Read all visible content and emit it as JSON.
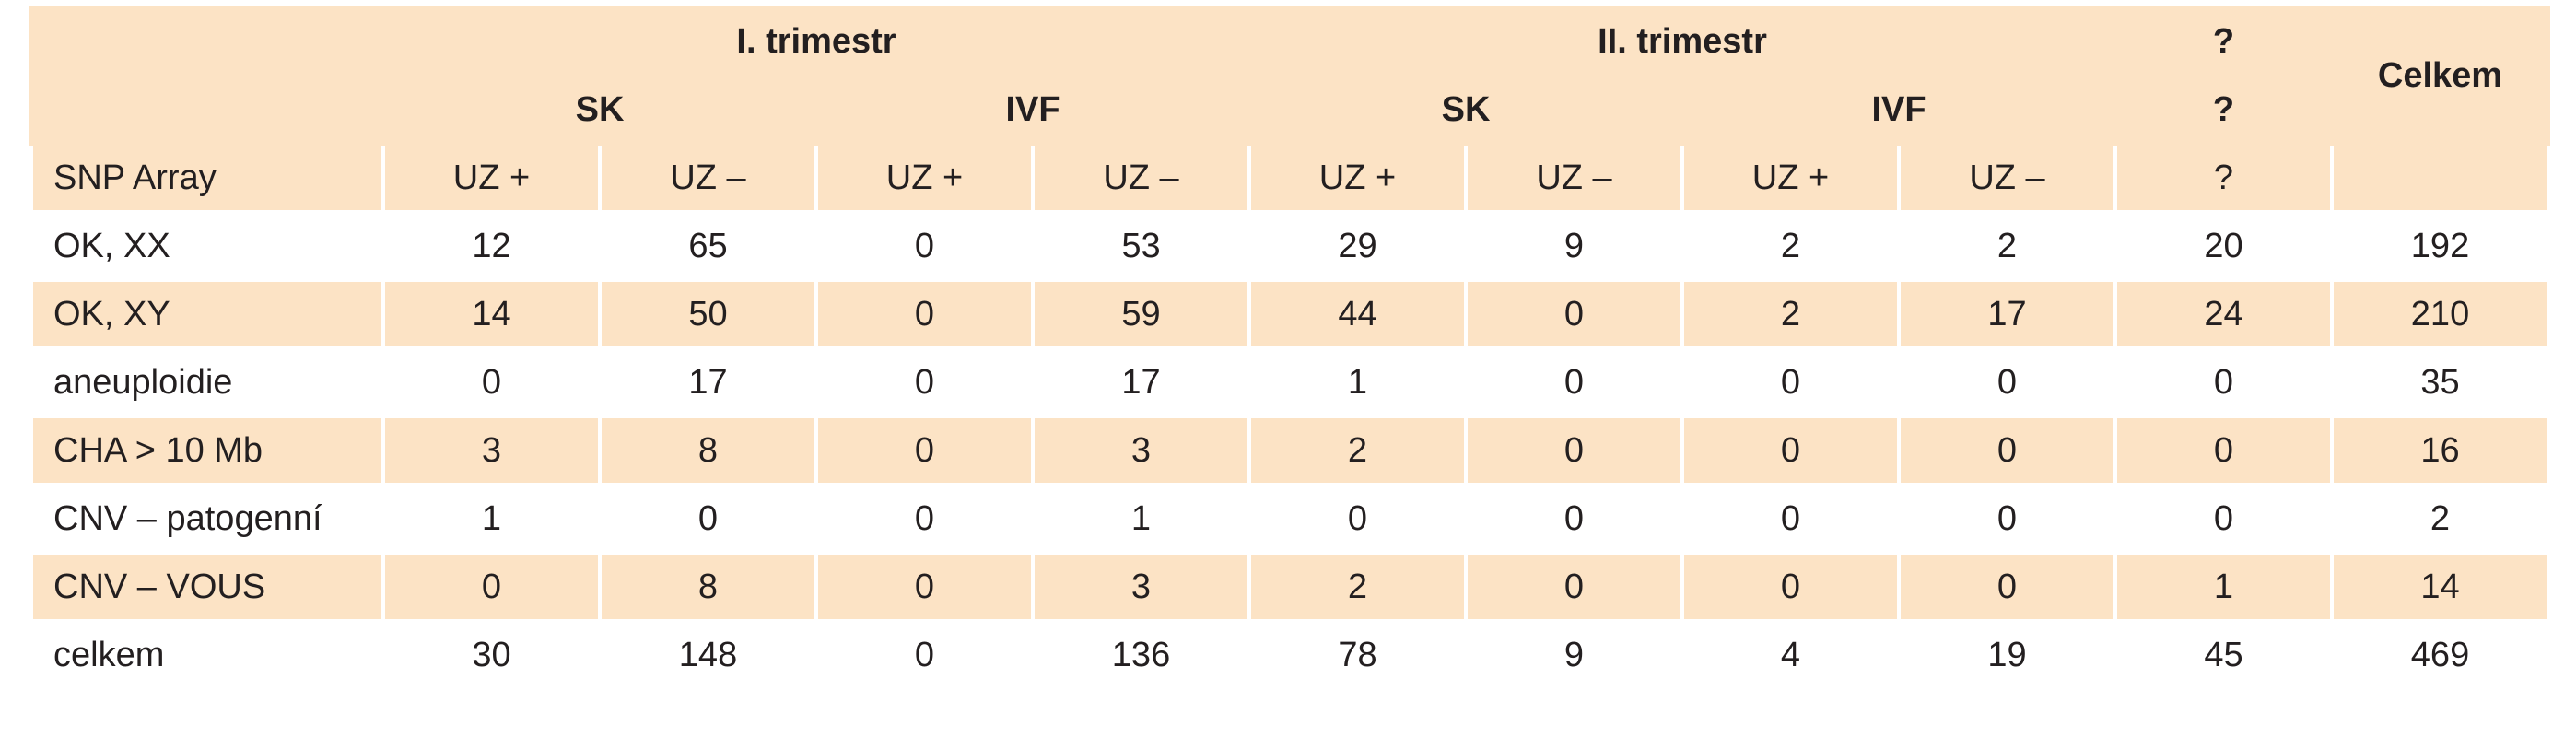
{
  "header": {
    "trimesters": [
      "I. trimestr",
      "II. trimestr",
      "?"
    ],
    "total": "Celkem",
    "methods": [
      "SK",
      "IVF",
      "SK",
      "IVF",
      "?"
    ],
    "row_label": "SNP Array",
    "subcolumns": [
      "UZ +",
      "UZ –",
      "UZ +",
      "UZ –",
      "UZ +",
      "UZ –",
      "UZ +",
      "UZ –",
      "?"
    ]
  },
  "table": {
    "rows": [
      {
        "label": "OK, XX",
        "values": [
          12,
          65,
          0,
          53,
          29,
          9,
          2,
          2,
          20,
          192
        ]
      },
      {
        "label": "OK, XY",
        "values": [
          14,
          50,
          0,
          59,
          44,
          0,
          2,
          17,
          24,
          210
        ]
      },
      {
        "label": "aneuploidie",
        "values": [
          0,
          17,
          0,
          17,
          1,
          0,
          0,
          0,
          0,
          35
        ]
      },
      {
        "label": "CHA > 10 Mb",
        "values": [
          3,
          8,
          0,
          3,
          2,
          0,
          0,
          0,
          0,
          16
        ]
      },
      {
        "label": "CNV – patogenní",
        "values": [
          1,
          0,
          0,
          1,
          0,
          0,
          0,
          0,
          0,
          2
        ]
      },
      {
        "label": "CNV – VOUS",
        "values": [
          0,
          8,
          0,
          3,
          2,
          0,
          0,
          0,
          1,
          14
        ]
      },
      {
        "label": "celkem",
        "values": [
          30,
          148,
          0,
          136,
          78,
          9,
          4,
          19,
          45,
          469
        ]
      }
    ]
  }
}
